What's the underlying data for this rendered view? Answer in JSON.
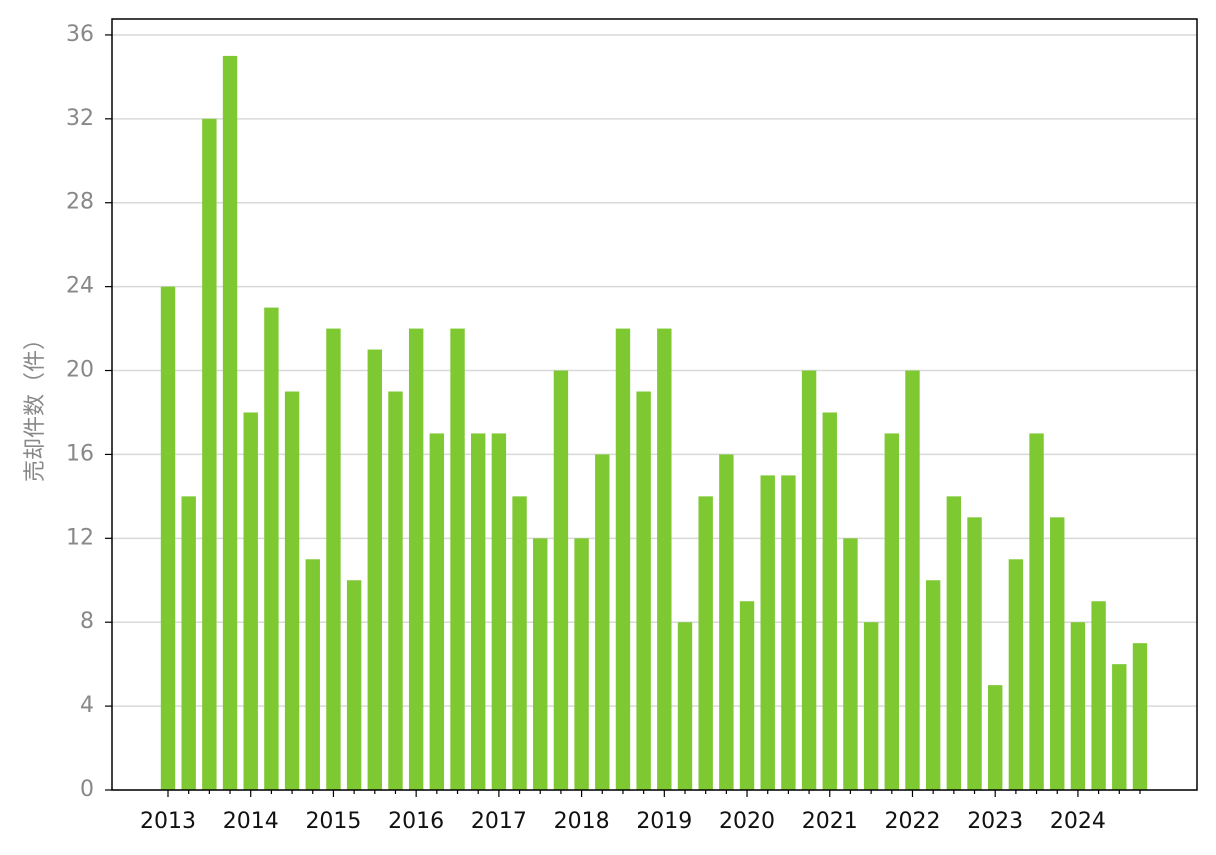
{
  "chart_data": {
    "type": "bar",
    "y_label": "売却件数（件）",
    "categories": [
      "2013",
      null,
      null,
      null,
      "2014",
      null,
      null,
      null,
      "2015",
      null,
      null,
      null,
      "2016",
      null,
      null,
      null,
      "2017",
      null,
      null,
      null,
      "2018",
      null,
      null,
      null,
      "2019",
      null,
      null,
      null,
      "2020",
      null,
      null,
      null,
      "2021",
      null,
      null,
      null,
      "2022",
      null,
      null,
      null,
      "2023",
      null,
      null,
      null,
      "2024",
      null,
      null,
      null
    ],
    "values": [
      24,
      14,
      32,
      35,
      18,
      23,
      19,
      11,
      22,
      10,
      21,
      19,
      22,
      17,
      22,
      17,
      17,
      14,
      12,
      20,
      12,
      16,
      22,
      19,
      22,
      8,
      14,
      16,
      9,
      15,
      15,
      20,
      18,
      12,
      8,
      17,
      20,
      10,
      14,
      13,
      5,
      11,
      17,
      13,
      8,
      9,
      6,
      7
    ],
    "color": "#7ec832",
    "ylim": [
      0,
      36.76
    ],
    "yticks": [
      0,
      4,
      8,
      12,
      16,
      20,
      24,
      28,
      32,
      36
    ],
    "grid": true
  }
}
